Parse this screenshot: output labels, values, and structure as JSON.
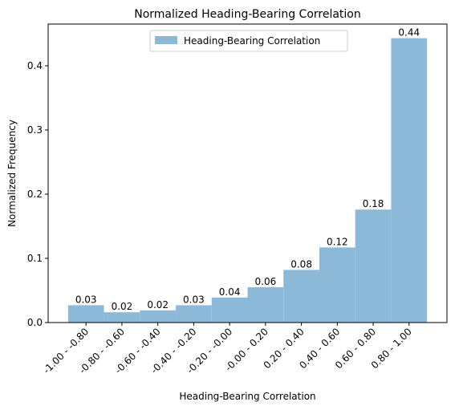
{
  "chart_data": {
    "type": "bar",
    "title": "Normalized Heading-Bearing Correlation",
    "xlabel": "Heading-Bearing Correlation",
    "ylabel": "Normalized Frequency",
    "categories": [
      "-1.00 - -0.80",
      "-0.80 - -0.60",
      "-0.60 - -0.40",
      "-0.40 - -0.20",
      "-0.20 - -0.00",
      "-0.00 - 0.20",
      "0.20 - 0.40",
      "0.40 - 0.60",
      "0.60 - 0.80",
      "0.80 - 1.00"
    ],
    "series": [
      {
        "name": "Heading-Bearing Correlation",
        "values": [
          0.027,
          0.016,
          0.019,
          0.027,
          0.039,
          0.055,
          0.082,
          0.117,
          0.176,
          0.443
        ],
        "labels": [
          "0.03",
          "0.02",
          "0.02",
          "0.03",
          "0.04",
          "0.06",
          "0.08",
          "0.12",
          "0.18",
          "0.44"
        ],
        "color": "#8db9d9"
      }
    ],
    "ylim": [
      0,
      0.465
    ],
    "yticks": [
      0.0,
      0.1,
      0.2,
      0.3,
      0.4
    ],
    "ytick_labels": [
      "0.0",
      "0.1",
      "0.2",
      "0.3",
      "0.4"
    ],
    "legend_position": "top-center",
    "grid": false
  }
}
